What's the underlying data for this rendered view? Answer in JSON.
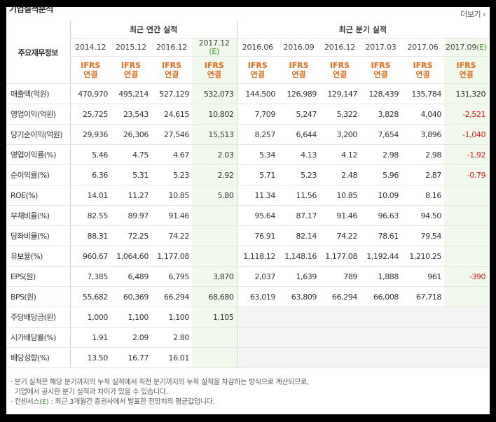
{
  "header": {
    "title": "기업실적분석",
    "more_label": "더보기 ›"
  },
  "table": {
    "corner_label": "주요재무정보",
    "annual_label": "최근 연간 실적",
    "quarter_label": "최근 분기 실적",
    "periods": [
      "2014.12",
      "2015.12",
      "2016.12",
      "2017.12",
      "2016.06",
      "2016.09",
      "2016.12",
      "2017.03",
      "2017.06",
      "2017.09"
    ],
    "estimate_mark": "(E)",
    "basis_line1": "IFRS",
    "basis_line2": "연결",
    "rows": [
      {
        "label": "매출액(억원)",
        "values": [
          "470,970",
          "495,214",
          "527,129",
          "532,073",
          "144,500",
          "126,989",
          "129,147",
          "128,439",
          "135,784",
          "131,320"
        ]
      },
      {
        "label": "영업이익(억원)",
        "values": [
          "25,725",
          "23,543",
          "24,615",
          "10,802",
          "7,709",
          "5,247",
          "5,322",
          "3,828",
          "4,040",
          "-2,521"
        ]
      },
      {
        "label": "당기순이익(억원)",
        "values": [
          "29,936",
          "26,306",
          "27,546",
          "15,513",
          "8,257",
          "6,644",
          "3,200",
          "7,654",
          "3,896",
          "-1,040"
        ]
      },
      {
        "label": "영업이익률(%)",
        "values": [
          "5.46",
          "4.75",
          "4.67",
          "2.03",
          "5.34",
          "4.13",
          "4.12",
          "2.98",
          "2.98",
          "-1.92"
        ]
      },
      {
        "label": "순이익률(%)",
        "values": [
          "6.36",
          "5.31",
          "5.23",
          "2.92",
          "5.71",
          "5.23",
          "2.48",
          "5.96",
          "2.87",
          "-0.79"
        ]
      },
      {
        "label": "ROE(%)",
        "values": [
          "14.01",
          "11.27",
          "10.85",
          "5.80",
          "11.34",
          "11.56",
          "10.85",
          "10.09",
          "8.16",
          ""
        ]
      },
      {
        "label": "부채비율(%)",
        "values": [
          "82.55",
          "89.97",
          "91.46",
          "",
          "95.64",
          "87.17",
          "91.46",
          "96.63",
          "94.50",
          ""
        ]
      },
      {
        "label": "당좌비율(%)",
        "values": [
          "88.31",
          "72.25",
          "74.22",
          "",
          "76.91",
          "82.14",
          "74.22",
          "78.61",
          "79.54",
          ""
        ]
      },
      {
        "label": "유보율(%)",
        "values": [
          "960.67",
          "1,064.60",
          "1,177.08",
          "",
          "1,118.12",
          "1,148.16",
          "1,177.08",
          "1,192.44",
          "1,210.25",
          ""
        ]
      },
      {
        "label": "EPS(원)",
        "values": [
          "7,385",
          "6,489",
          "6,795",
          "3,870",
          "2,037",
          "1,639",
          "789",
          "1,888",
          "961",
          "-390"
        ]
      },
      {
        "label": "BPS(원)",
        "values": [
          "55,682",
          "60,369",
          "66,294",
          "68,680",
          "63,019",
          "63,809",
          "66,294",
          "66,008",
          "67,718",
          ""
        ]
      },
      {
        "label": "주당배당금(원)",
        "values": [
          "1,000",
          "1,100",
          "1,100",
          "1,105",
          "",
          "",
          "",
          "",
          "",
          ""
        ]
      },
      {
        "label": "시가배당률(%)",
        "values": [
          "1.91",
          "2.09",
          "2.80",
          "",
          "",
          "",
          "",
          "",
          "",
          ""
        ]
      },
      {
        "label": "배당성향(%)",
        "values": [
          "13.50",
          "16.77",
          "16.01",
          "",
          "",
          "",
          "",
          "",
          "",
          ""
        ]
      }
    ]
  },
  "notes": {
    "line1": "· 분기 실적은 해당 분기까지의 누적 실적에서 직전 분기까지의 누적 실적을 차감하는 방식으로 계산되므로,",
    "line2": "  기업에서 공시한 분기 실적과 차이가 있을 수 있습니다.",
    "line3_prefix": "· 컨센서스(",
    "line3_mark": "E",
    "line3_suffix": ") : 최근 3개월간 증권사에서 발표한 전망치의 평균값입니다."
  },
  "colors": {
    "estimate_bg": "#f1f8ec",
    "negative": "#e0201b",
    "basis": "#e46d1c",
    "estimate_mark": "#3a9a2a"
  }
}
